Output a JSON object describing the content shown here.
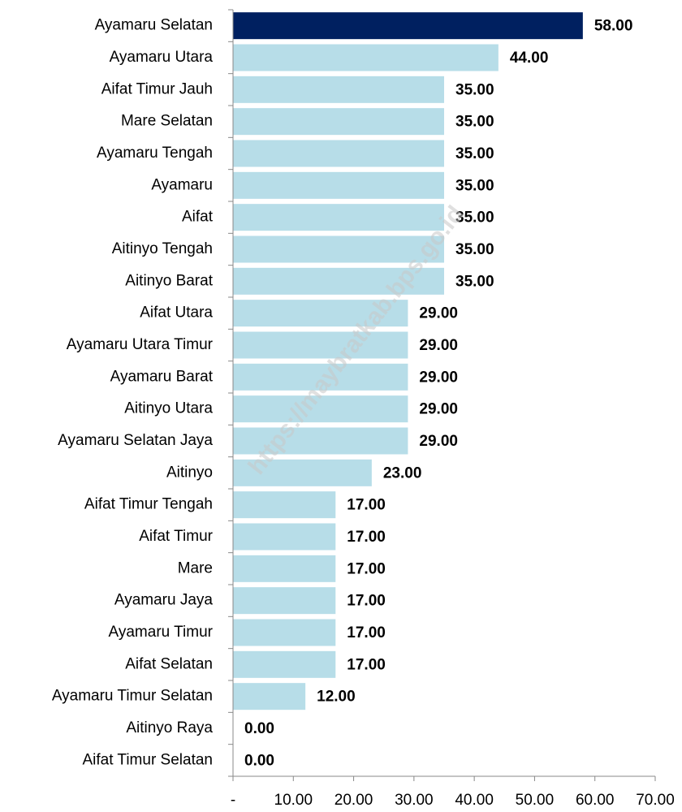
{
  "chart_data": {
    "type": "bar",
    "orientation": "horizontal",
    "watermark": "https://maybratkab.bps.go.id",
    "categories": [
      "Ayamaru Selatan",
      "Ayamaru Utara",
      "Aifat Timur Jauh",
      "Mare Selatan",
      "Ayamaru Tengah",
      "Ayamaru",
      "Aifat",
      "Aitinyo Tengah",
      "Aitinyo Barat",
      "Aifat Utara",
      "Ayamaru Utara Timur",
      "Ayamaru Barat",
      "Aitinyo Utara",
      "Ayamaru Selatan Jaya",
      "Aitinyo",
      "Aifat Timur Tengah",
      "Aifat Timur",
      "Mare",
      "Ayamaru Jaya",
      "Ayamaru Timur",
      "Aifat Selatan",
      "Ayamaru Timur Selatan",
      "Aitinyo Raya",
      "Aifat Timur Selatan"
    ],
    "values": [
      58,
      44,
      35,
      35,
      35,
      35,
      35,
      35,
      35,
      29,
      29,
      29,
      29,
      29,
      23,
      17,
      17,
      17,
      17,
      17,
      17,
      12,
      0,
      0
    ],
    "value_labels": [
      "58.00",
      "44.00",
      "35.00",
      "35.00",
      "35.00",
      "35.00",
      "35.00",
      "35.00",
      "35.00",
      "29.00",
      "29.00",
      "29.00",
      "29.00",
      "29.00",
      "23.00",
      "17.00",
      "17.00",
      "17.00",
      "17.00",
      "17.00",
      "17.00",
      "12.00",
      "0.00",
      "0.00"
    ],
    "colors": [
      "#002060",
      "#b7dde8",
      "#b7dde8",
      "#b7dde8",
      "#b7dde8",
      "#b7dde8",
      "#b7dde8",
      "#b7dde8",
      "#b7dde8",
      "#b7dde8",
      "#b7dde8",
      "#b7dde8",
      "#b7dde8",
      "#b7dde8",
      "#b7dde8",
      "#b7dde8",
      "#b7dde8",
      "#b7dde8",
      "#b7dde8",
      "#b7dde8",
      "#b7dde8",
      "#b7dde8",
      "#b7dde8",
      "#b7dde8"
    ],
    "xlim": [
      0,
      70
    ],
    "xticks": [
      {
        "value": 0,
        "label": "-"
      },
      {
        "value": 10,
        "label": "10.00"
      },
      {
        "value": 20,
        "label": "20.00"
      },
      {
        "value": 30,
        "label": "30.00"
      },
      {
        "value": 40,
        "label": "40.00"
      },
      {
        "value": 50,
        "label": "50.00"
      },
      {
        "value": 60,
        "label": "60.00"
      },
      {
        "value": 70,
        "label": "70.00"
      }
    ],
    "grid": false
  }
}
